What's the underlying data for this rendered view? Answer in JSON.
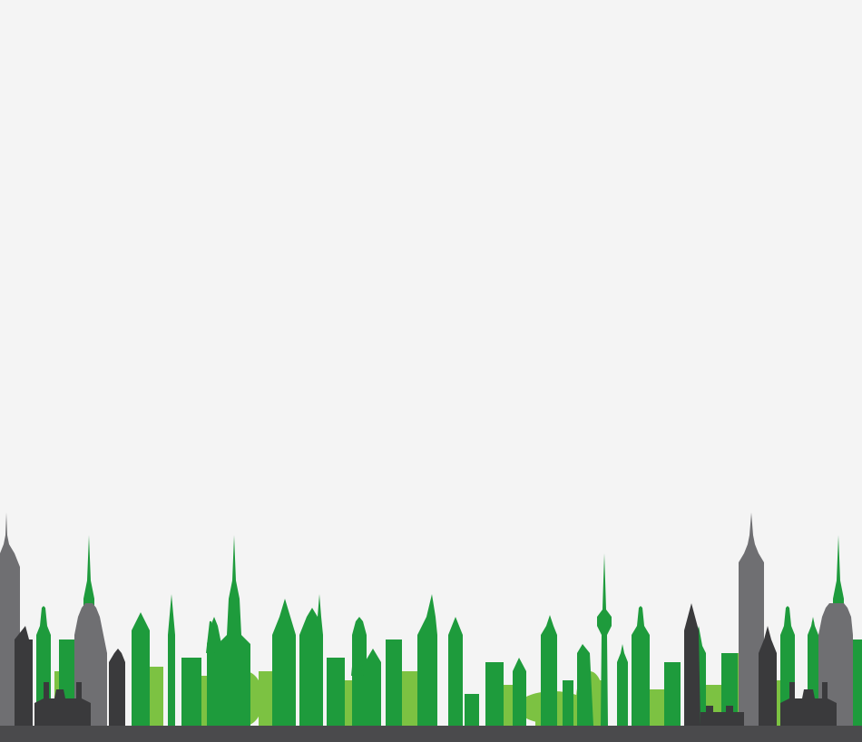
{
  "scene": {
    "description_label": "",
    "colors": {
      "background": "#f4f4f4",
      "green_dark": "#1e9b3c",
      "green_light": "#7cc242",
      "gray_light": "#6f6f72",
      "gray_dark": "#3a3a3c",
      "ground": "#4a4a4c"
    },
    "icons": [
      "city-skyline-illustration"
    ]
  }
}
